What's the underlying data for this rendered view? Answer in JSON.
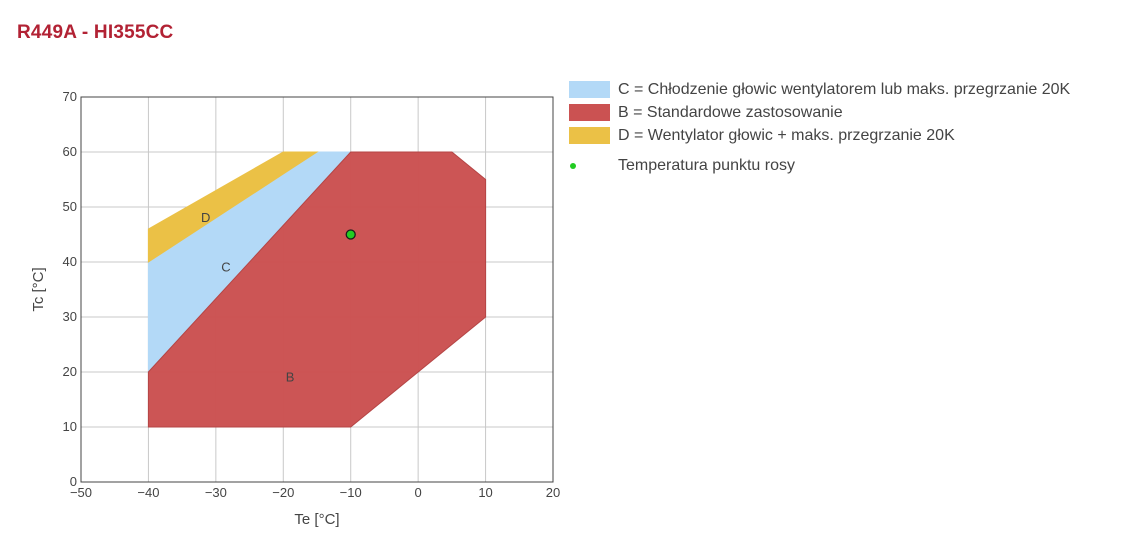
{
  "title": "R449A - HI355CC",
  "colors": {
    "title": "#b22234",
    "C": "#b3d9f7",
    "B": "#cb5252",
    "B_edge": "#b54545",
    "D": "#ebc146",
    "dew_point": "#22cc22"
  },
  "chart_data": {
    "type": "area",
    "xlabel": "Te [°C]",
    "ylabel": "Tc [°C]",
    "xlim": [
      -50,
      20
    ],
    "ylim": [
      0,
      70
    ],
    "xticks": [
      "−50",
      "−40",
      "−30",
      "−20",
      "−10",
      "0",
      "10",
      "20"
    ],
    "yticks": [
      "0",
      "10",
      "20",
      "30",
      "40",
      "50",
      "60",
      "70"
    ],
    "grid": true,
    "legend_position": "right",
    "regions": [
      {
        "key": "C",
        "label": "C",
        "legend": "C = Chłodzenie głowic wentylatorem lub maks. przegrzanie 20K",
        "polygon": [
          [
            -40,
            20
          ],
          [
            -40,
            40
          ],
          [
            -20,
            56
          ],
          [
            -15,
            60
          ],
          [
            -10,
            60
          ]
        ],
        "label_at": [
          -28.5,
          39
        ]
      },
      {
        "key": "B",
        "label": "B",
        "legend": "B = Standardowe zastosowanie",
        "polygon": [
          [
            -40,
            10
          ],
          [
            -40,
            20
          ],
          [
            -10,
            60
          ],
          [
            5,
            60
          ],
          [
            10,
            55
          ],
          [
            10,
            30
          ],
          [
            -10,
            10
          ]
        ],
        "label_at": [
          -19,
          19
        ]
      },
      {
        "key": "D",
        "label": "D",
        "legend": "D = Wentylator głowic + maks. przegrzanie 20K",
        "polygon": [
          [
            -40,
            40
          ],
          [
            -40,
            46
          ],
          [
            -20,
            60
          ],
          [
            -15,
            60
          ],
          [
            -20,
            56
          ]
        ],
        "label_at": [
          -31.5,
          48
        ]
      }
    ],
    "points": [
      {
        "name": "Temperatura punktu rosy",
        "x": -10,
        "y": 45
      }
    ]
  }
}
